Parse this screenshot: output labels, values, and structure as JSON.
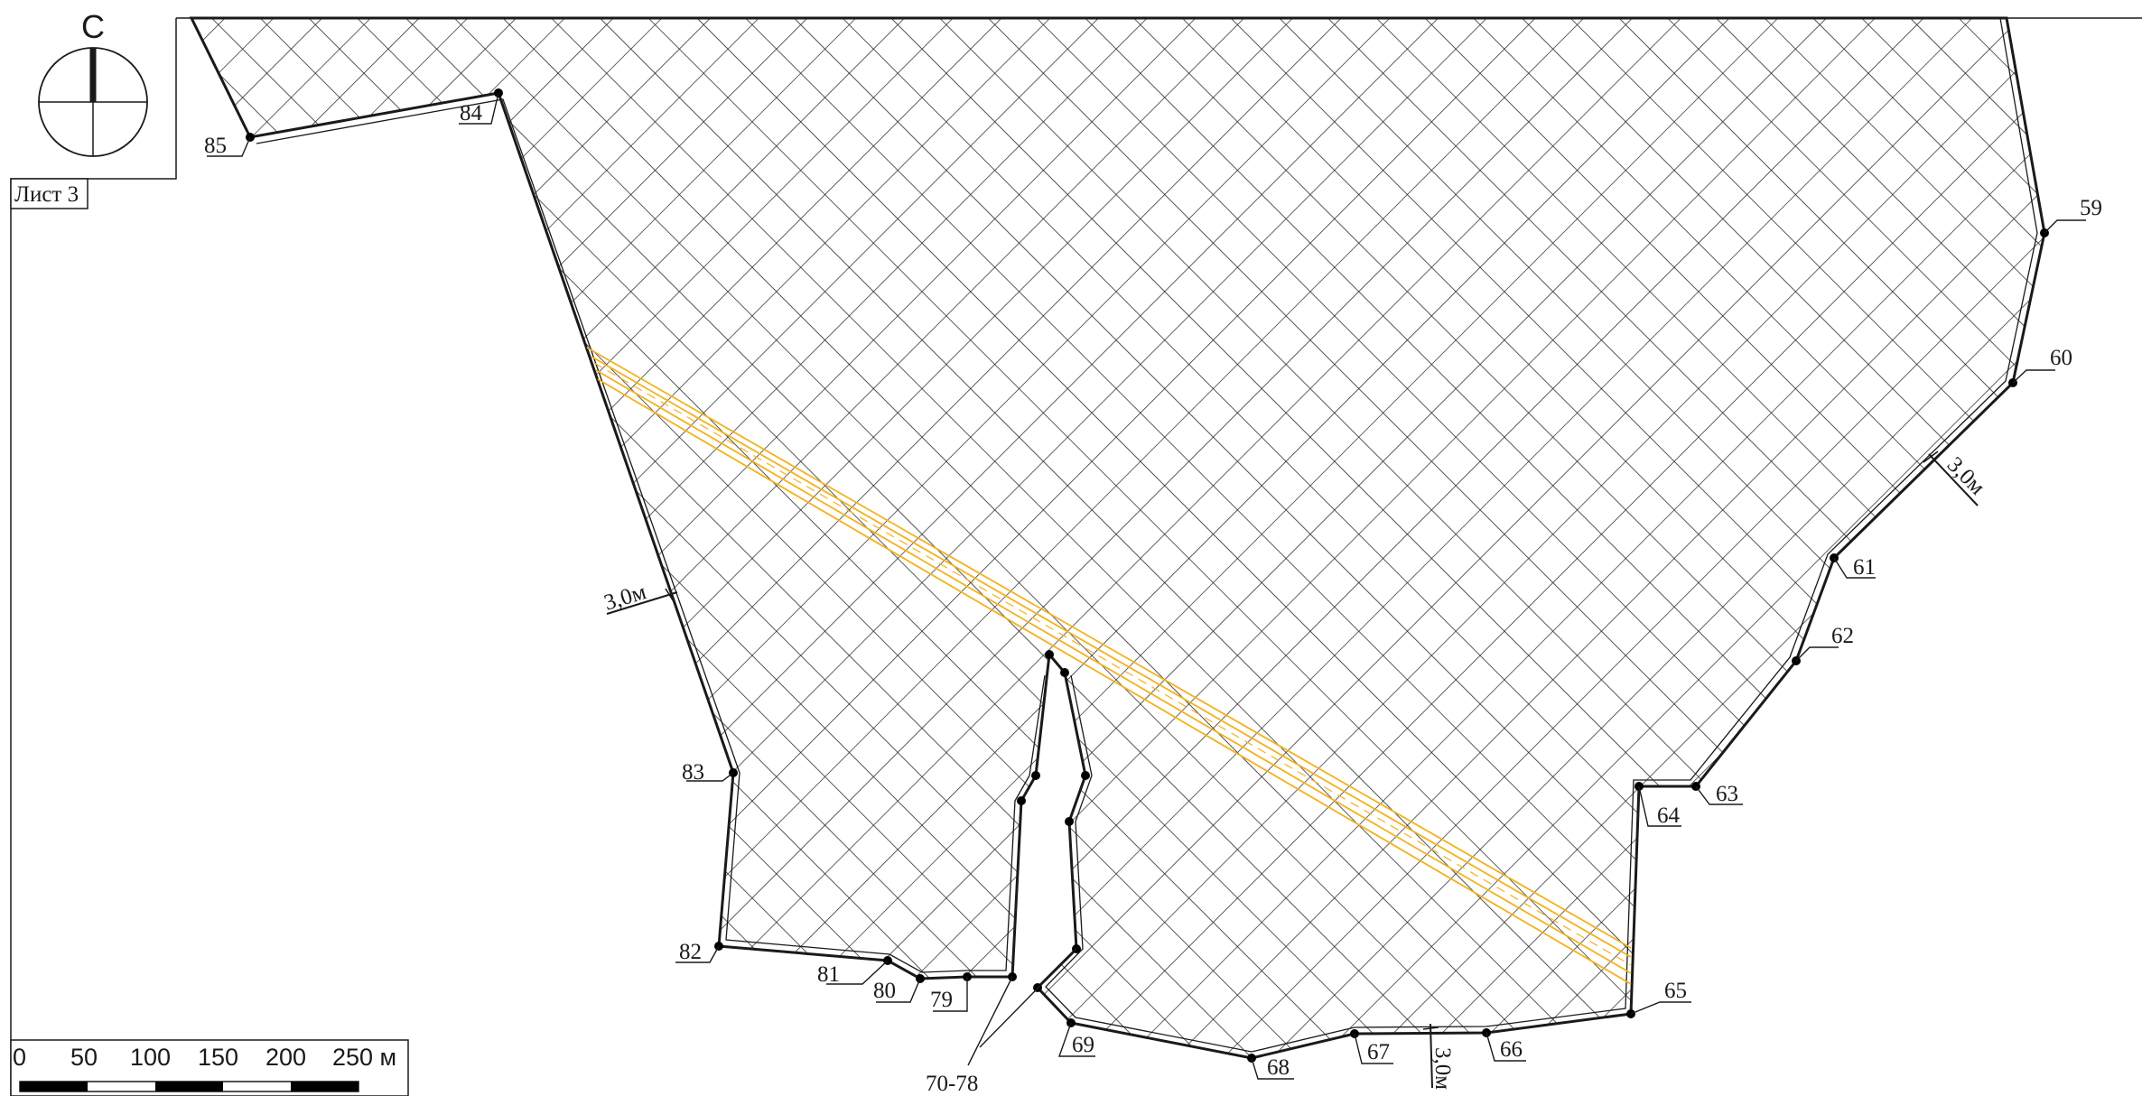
{
  "sheet": {
    "label": "Лист 3"
  },
  "compass": {
    "north_letter": "С"
  },
  "colors": {
    "line": "#1a1a1a",
    "hatch": "#1f1f1f",
    "pipeline": "#f2b21c",
    "background": "#ffffff"
  },
  "points": [
    {
      "label": "59"
    },
    {
      "label": "60"
    },
    {
      "label": "61"
    },
    {
      "label": "62"
    },
    {
      "label": "63"
    },
    {
      "label": "64"
    },
    {
      "label": "65"
    },
    {
      "label": "66"
    },
    {
      "label": "67"
    },
    {
      "label": "68"
    },
    {
      "label": "69"
    },
    {
      "label": "70-78"
    },
    {
      "label": "79"
    },
    {
      "label": "80"
    },
    {
      "label": "81"
    },
    {
      "label": "82"
    },
    {
      "label": "83"
    },
    {
      "label": "84"
    },
    {
      "label": "85"
    }
  ],
  "buffer_width_labels": [
    "3,0м",
    "3,0м",
    "3,0м"
  ],
  "scale_bar": {
    "ticks": [
      "0",
      "50",
      "100",
      "150",
      "200",
      "250 м"
    ]
  }
}
